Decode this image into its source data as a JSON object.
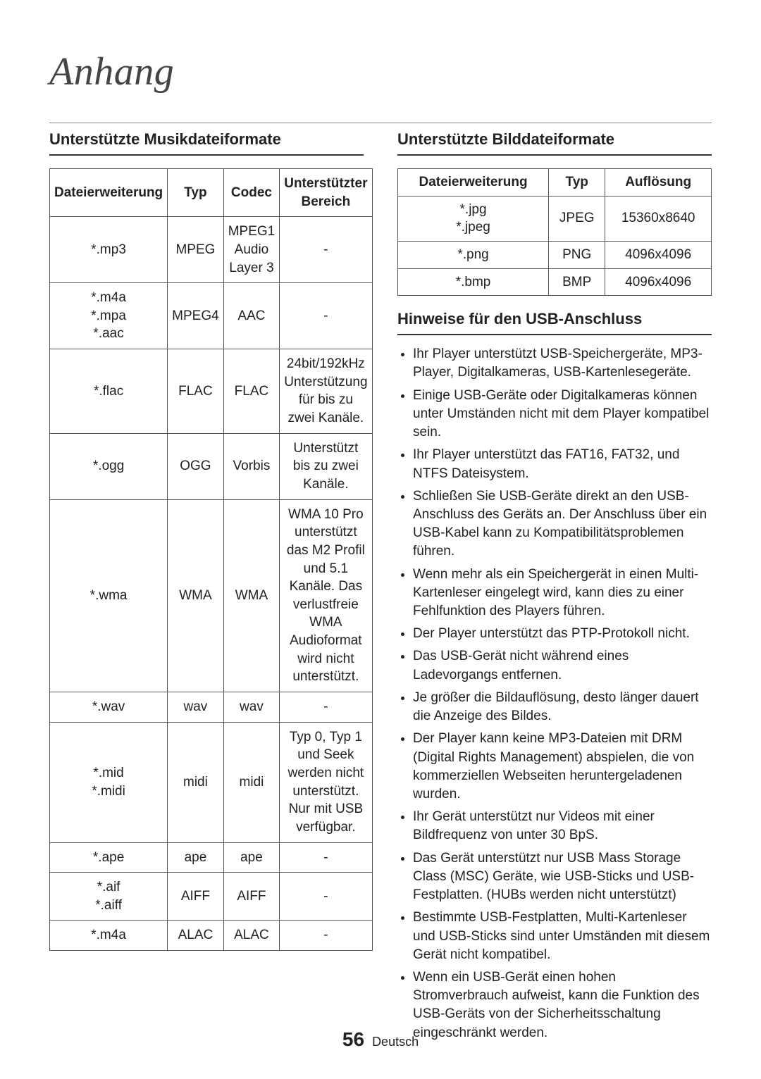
{
  "chapter_title": "Anhang",
  "left": {
    "heading": "Unterstützte Musikdateiformate",
    "table": {
      "headers": [
        "Dateierweiterung",
        "Typ",
        "Codec",
        "Unterstützter Bereich"
      ],
      "rows": [
        {
          "ext": "*.mp3",
          "type": "MPEG",
          "codec": "MPEG1 Audio Layer 3",
          "range": "-"
        },
        {
          "ext": "*.m4a\n*.mpa\n*.aac",
          "type": "MPEG4",
          "codec": "AAC",
          "range": "-"
        },
        {
          "ext": "*.flac",
          "type": "FLAC",
          "codec": "FLAC",
          "range": "24bit/192kHz Unterstützung für bis zu zwei Kanäle."
        },
        {
          "ext": "*.ogg",
          "type": "OGG",
          "codec": "Vorbis",
          "range": "Unterstützt bis zu zwei Kanäle."
        },
        {
          "ext": "*.wma",
          "type": "WMA",
          "codec": "WMA",
          "range": "WMA 10 Pro unterstützt das M2 Profil und 5.1 Kanäle. Das verlustfreie WMA Audioformat wird nicht unterstützt."
        },
        {
          "ext": "*.wav",
          "type": "wav",
          "codec": "wav",
          "range": "-"
        },
        {
          "ext": "*.mid\n*.midi",
          "type": "midi",
          "codec": "midi",
          "range": "Typ 0, Typ 1 und Seek werden nicht unterstützt. Nur mit USB verfügbar."
        },
        {
          "ext": "*.ape",
          "type": "ape",
          "codec": "ape",
          "range": "-"
        },
        {
          "ext": "*.aif\n*.aiff",
          "type": "AIFF",
          "codec": "AIFF",
          "range": "-"
        },
        {
          "ext": "*.m4a",
          "type": "ALAC",
          "codec": "ALAC",
          "range": "-"
        }
      ]
    }
  },
  "right": {
    "img_heading": "Unterstützte Bilddateiformate",
    "img_table": {
      "headers": [
        "Dateierweiterung",
        "Typ",
        "Auflösung"
      ],
      "rows": [
        {
          "ext": "*.jpg\n*.jpeg",
          "type": "JPEG",
          "res": "15360x8640"
        },
        {
          "ext": "*.png",
          "type": "PNG",
          "res": "4096x4096"
        },
        {
          "ext": "*.bmp",
          "type": "BMP",
          "res": "4096x4096"
        }
      ]
    },
    "notes_heading": "Hinweise für den USB-Anschluss",
    "notes": [
      "Ihr Player unterstützt USB-Speichergeräte, MP3-Player, Digitalkameras, USB-Kartenlesegeräte.",
      "Einige USB-Geräte oder Digitalkameras können unter Umständen nicht mit dem Player kompatibel sein.",
      "Ihr Player unterstützt das FAT16, FAT32, und NTFS Dateisystem.",
      "Schließen Sie USB-Geräte direkt an den USB-Anschluss des Geräts an. Der Anschluss über ein USB-Kabel kann zu Kompatibilitätsproblemen führen.",
      "Wenn mehr als ein Speichergerät in einen Multi-Kartenleser eingelegt wird, kann dies zu einer Fehlfunktion des Players führen.",
      "Der Player unterstützt das PTP-Protokoll nicht.",
      "Das USB-Gerät nicht während eines Ladevorgangs entfernen.",
      "Je größer die Bildauflösung, desto länger dauert die Anzeige des Bildes.",
      "Der Player kann keine MP3-Dateien mit DRM (Digital Rights Management) abspielen, die von kommerziellen Webseiten heruntergeladenen wurden.",
      "Ihr Gerät unterstützt nur Videos mit einer Bildfrequenz von unter 30 BpS.",
      "Das Gerät unterstützt nur USB Mass Storage Class (MSC) Geräte, wie USB-Sticks und USB-Festplatten. (HUBs werden nicht unterstützt)",
      "Bestimmte USB-Festplatten, Multi-Kartenleser und USB-Sticks sind unter Umständen mit diesem Gerät nicht kompatibel.",
      "Wenn ein USB-Gerät einen hohen Stromverbrauch aufweist, kann die Funktion des USB-Geräts von der Sicherheitsschaltung eingeschränkt werden."
    ]
  },
  "footer": {
    "page_number": "56",
    "language": "Deutsch"
  }
}
